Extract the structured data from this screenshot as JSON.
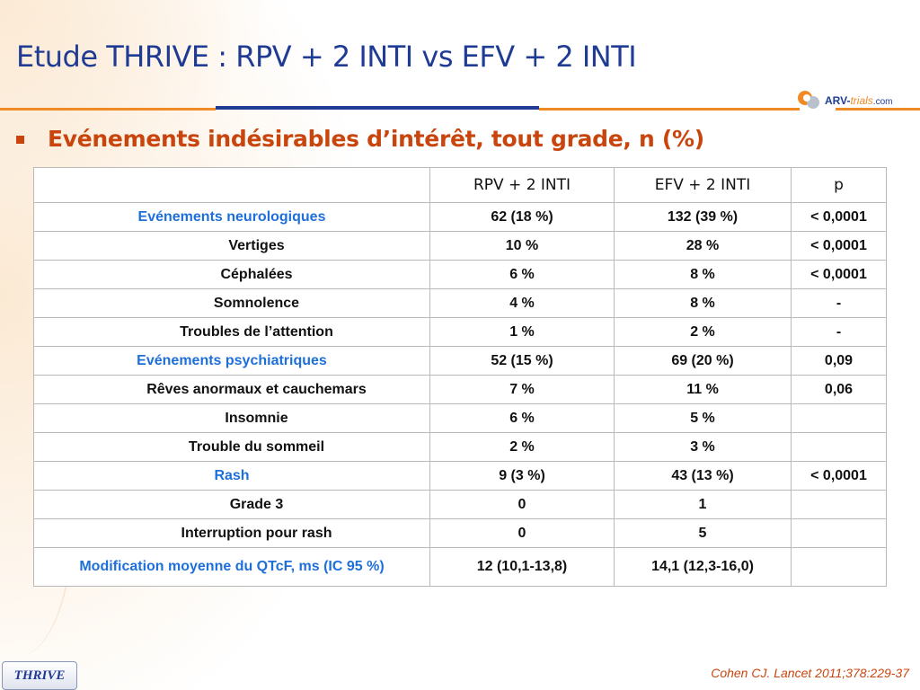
{
  "title": "Etude THRIVE : RPV + 2 INTI vs EFV + 2 INTI",
  "logo": {
    "arv": "ARV-",
    "trials": "trials",
    "com": ".com"
  },
  "subtitle": "Evénements indésirables d’intérêt, tout grade, n (%)",
  "table": {
    "headers": [
      "",
      "RPV + 2 INTI",
      "EFV + 2 INTI",
      "p"
    ],
    "rows": [
      {
        "label": "Evénements neurologiques",
        "rpv": "62 (18 %)",
        "efv": "132 (39 %)",
        "p": "< 0,0001"
      },
      {
        "label": "Vertiges",
        "rpv": "10 %",
        "efv": "28 %",
        "p": "< 0,0001"
      },
      {
        "label": "Céphalées",
        "rpv": "6 %",
        "efv": "8 %",
        "p": "< 0,0001"
      },
      {
        "label": "Somnolence",
        "rpv": "4 %",
        "efv": "8 %",
        "p": "-"
      },
      {
        "label": "Troubles de l’attention",
        "rpv": "1 %",
        "efv": "2 %",
        "p": "-"
      },
      {
        "label": "Evénements psychiatriques",
        "rpv": "52 (15 %)",
        "efv": "69 (20 %)",
        "p": "0,09"
      },
      {
        "label": "Rêves anormaux et cauchemars",
        "rpv": "7 %",
        "efv": "11 %",
        "p": "0,06"
      },
      {
        "label": "Insomnie",
        "rpv": "6 %",
        "efv": "5 %",
        "p": ""
      },
      {
        "label": "Trouble du sommeil",
        "rpv": "2 %",
        "efv": "3 %",
        "p": ""
      },
      {
        "label": "Rash",
        "rpv": "9 (3 %)",
        "efv": "43 (13 %)",
        "p": "< 0,0001"
      },
      {
        "label": "Grade 3",
        "rpv": "0",
        "efv": "1",
        "p": ""
      },
      {
        "label": "Interruption pour rash",
        "rpv": "0",
        "efv": "5",
        "p": ""
      },
      {
        "label": "Modification moyenne du QTcF, ms (IC 95 %)",
        "rpv": "12 (10,1-13,8)",
        "efv": "14,1 (12,3-16,0)",
        "p": ""
      }
    ]
  },
  "colors": {
    "title": "#1f3b94",
    "subtitle": "#c8460e",
    "category_label": "#1e6fd9",
    "rpv_header": "#15266a",
    "efv_header": "#f39a2c"
  },
  "badge": "THRIVE",
  "citation": "Cohen CJ. Lancet 2011;378:229-37"
}
